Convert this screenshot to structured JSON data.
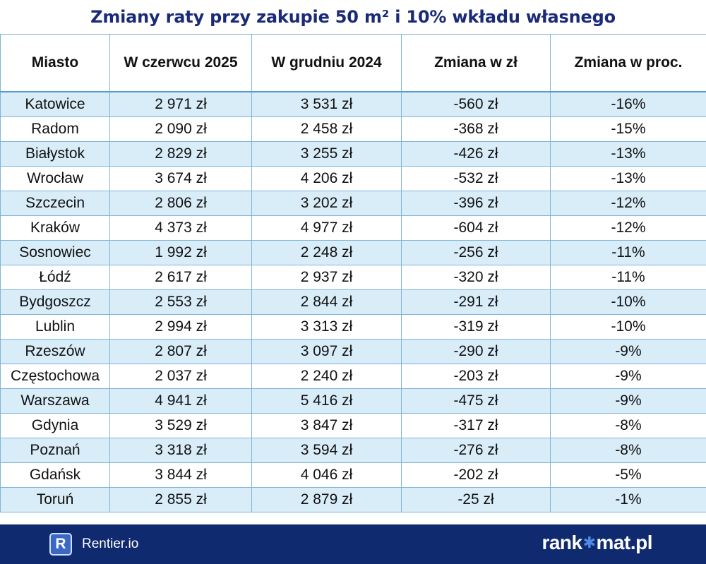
{
  "chart_data": {
    "type": "table",
    "title": "Zmiany raty przy zakupie 50 m² i 10% wkładu własnego",
    "columns": [
      "Miasto",
      "W czerwcu 2025",
      "W grudniu 2024",
      "Zmiana w zł",
      "Zmiana w proc."
    ],
    "rows": [
      [
        "Katowice",
        "2 971 zł",
        "3 531 zł",
        "-560 zł",
        "-16%"
      ],
      [
        "Radom",
        "2 090 zł",
        "2 458 zł",
        "-368 zł",
        "-15%"
      ],
      [
        "Białystok",
        "2 829 zł",
        "3 255 zł",
        "-426 zł",
        "-13%"
      ],
      [
        "Wrocław",
        "3 674 zł",
        "4 206 zł",
        "-532 zł",
        "-13%"
      ],
      [
        "Szczecin",
        "2 806 zł",
        "3 202 zł",
        "-396 zł",
        "-12%"
      ],
      [
        "Kraków",
        "4 373 zł",
        "4 977 zł",
        "-604 zł",
        "-12%"
      ],
      [
        "Sosnowiec",
        "1 992 zł",
        "2 248 zł",
        "-256 zł",
        "-11%"
      ],
      [
        "Łódź",
        "2 617 zł",
        "2 937 zł",
        "-320 zł",
        "-11%"
      ],
      [
        "Bydgoszcz",
        "2 553 zł",
        "2 844 zł",
        "-291 zł",
        "-10%"
      ],
      [
        "Lublin",
        "2 994 zł",
        "3 313 zł",
        "-319 zł",
        "-10%"
      ],
      [
        "Rzeszów",
        "2 807 zł",
        "3 097 zł",
        "-290 zł",
        "-9%"
      ],
      [
        "Częstochowa",
        "2 037 zł",
        "2 240 zł",
        "-203 zł",
        "-9%"
      ],
      [
        "Warszawa",
        "4 941 zł",
        "5 416 zł",
        "-475 zł",
        "-9%"
      ],
      [
        "Gdynia",
        "3 529 zł",
        "3 847 zł",
        "-317 zł",
        "-8%"
      ],
      [
        "Poznań",
        "3 318 zł",
        "3 594 zł",
        "-276 zł",
        "-8%"
      ],
      [
        "Gdańsk",
        "3 844 zł",
        "4 046 zł",
        "-202 zł",
        "-5%"
      ],
      [
        "Toruń",
        "2 855 zł",
        "2 879 zł",
        "-25 zł",
        "-1%"
      ]
    ]
  },
  "footer": {
    "left_logo_letter": "R",
    "left_brand": "Rentier.io",
    "right_brand_start": "rank",
    "right_brand_end": "mat.pl",
    "right_logo_icon": "star-icon"
  },
  "colors": {
    "title": "#1a2a78",
    "row_stripe": "#d9edf8",
    "footer_bg": "#0f2a6e"
  }
}
